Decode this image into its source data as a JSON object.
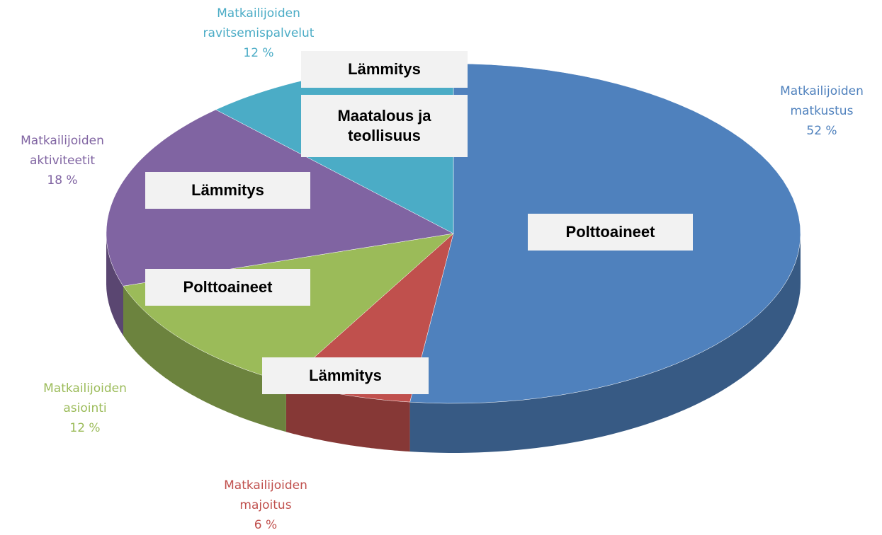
{
  "chart_data": {
    "type": "pie",
    "categories": [
      "Matkailijoiden matkustus",
      "Matkailijoiden majoitus",
      "Matkailijoiden asiointi",
      "Matkailijoiden aktiviteetit",
      "Matkailijoiden ravitsemispalvelut"
    ],
    "values": [
      52,
      6,
      12,
      18,
      12
    ],
    "value_labels": [
      "52 %",
      "6 %",
      "12 %",
      "18 %",
      "12 %"
    ],
    "colors": [
      "#4f81bd",
      "#c0504d",
      "#9bbb59",
      "#8064a2",
      "#4bacc6"
    ],
    "annotations": [
      "Lämmitys",
      "Maatalous ja teollisuus",
      "Lämmitys",
      "Polttoaineet",
      "Polttoaineet",
      "Lämmitys"
    ]
  }
}
